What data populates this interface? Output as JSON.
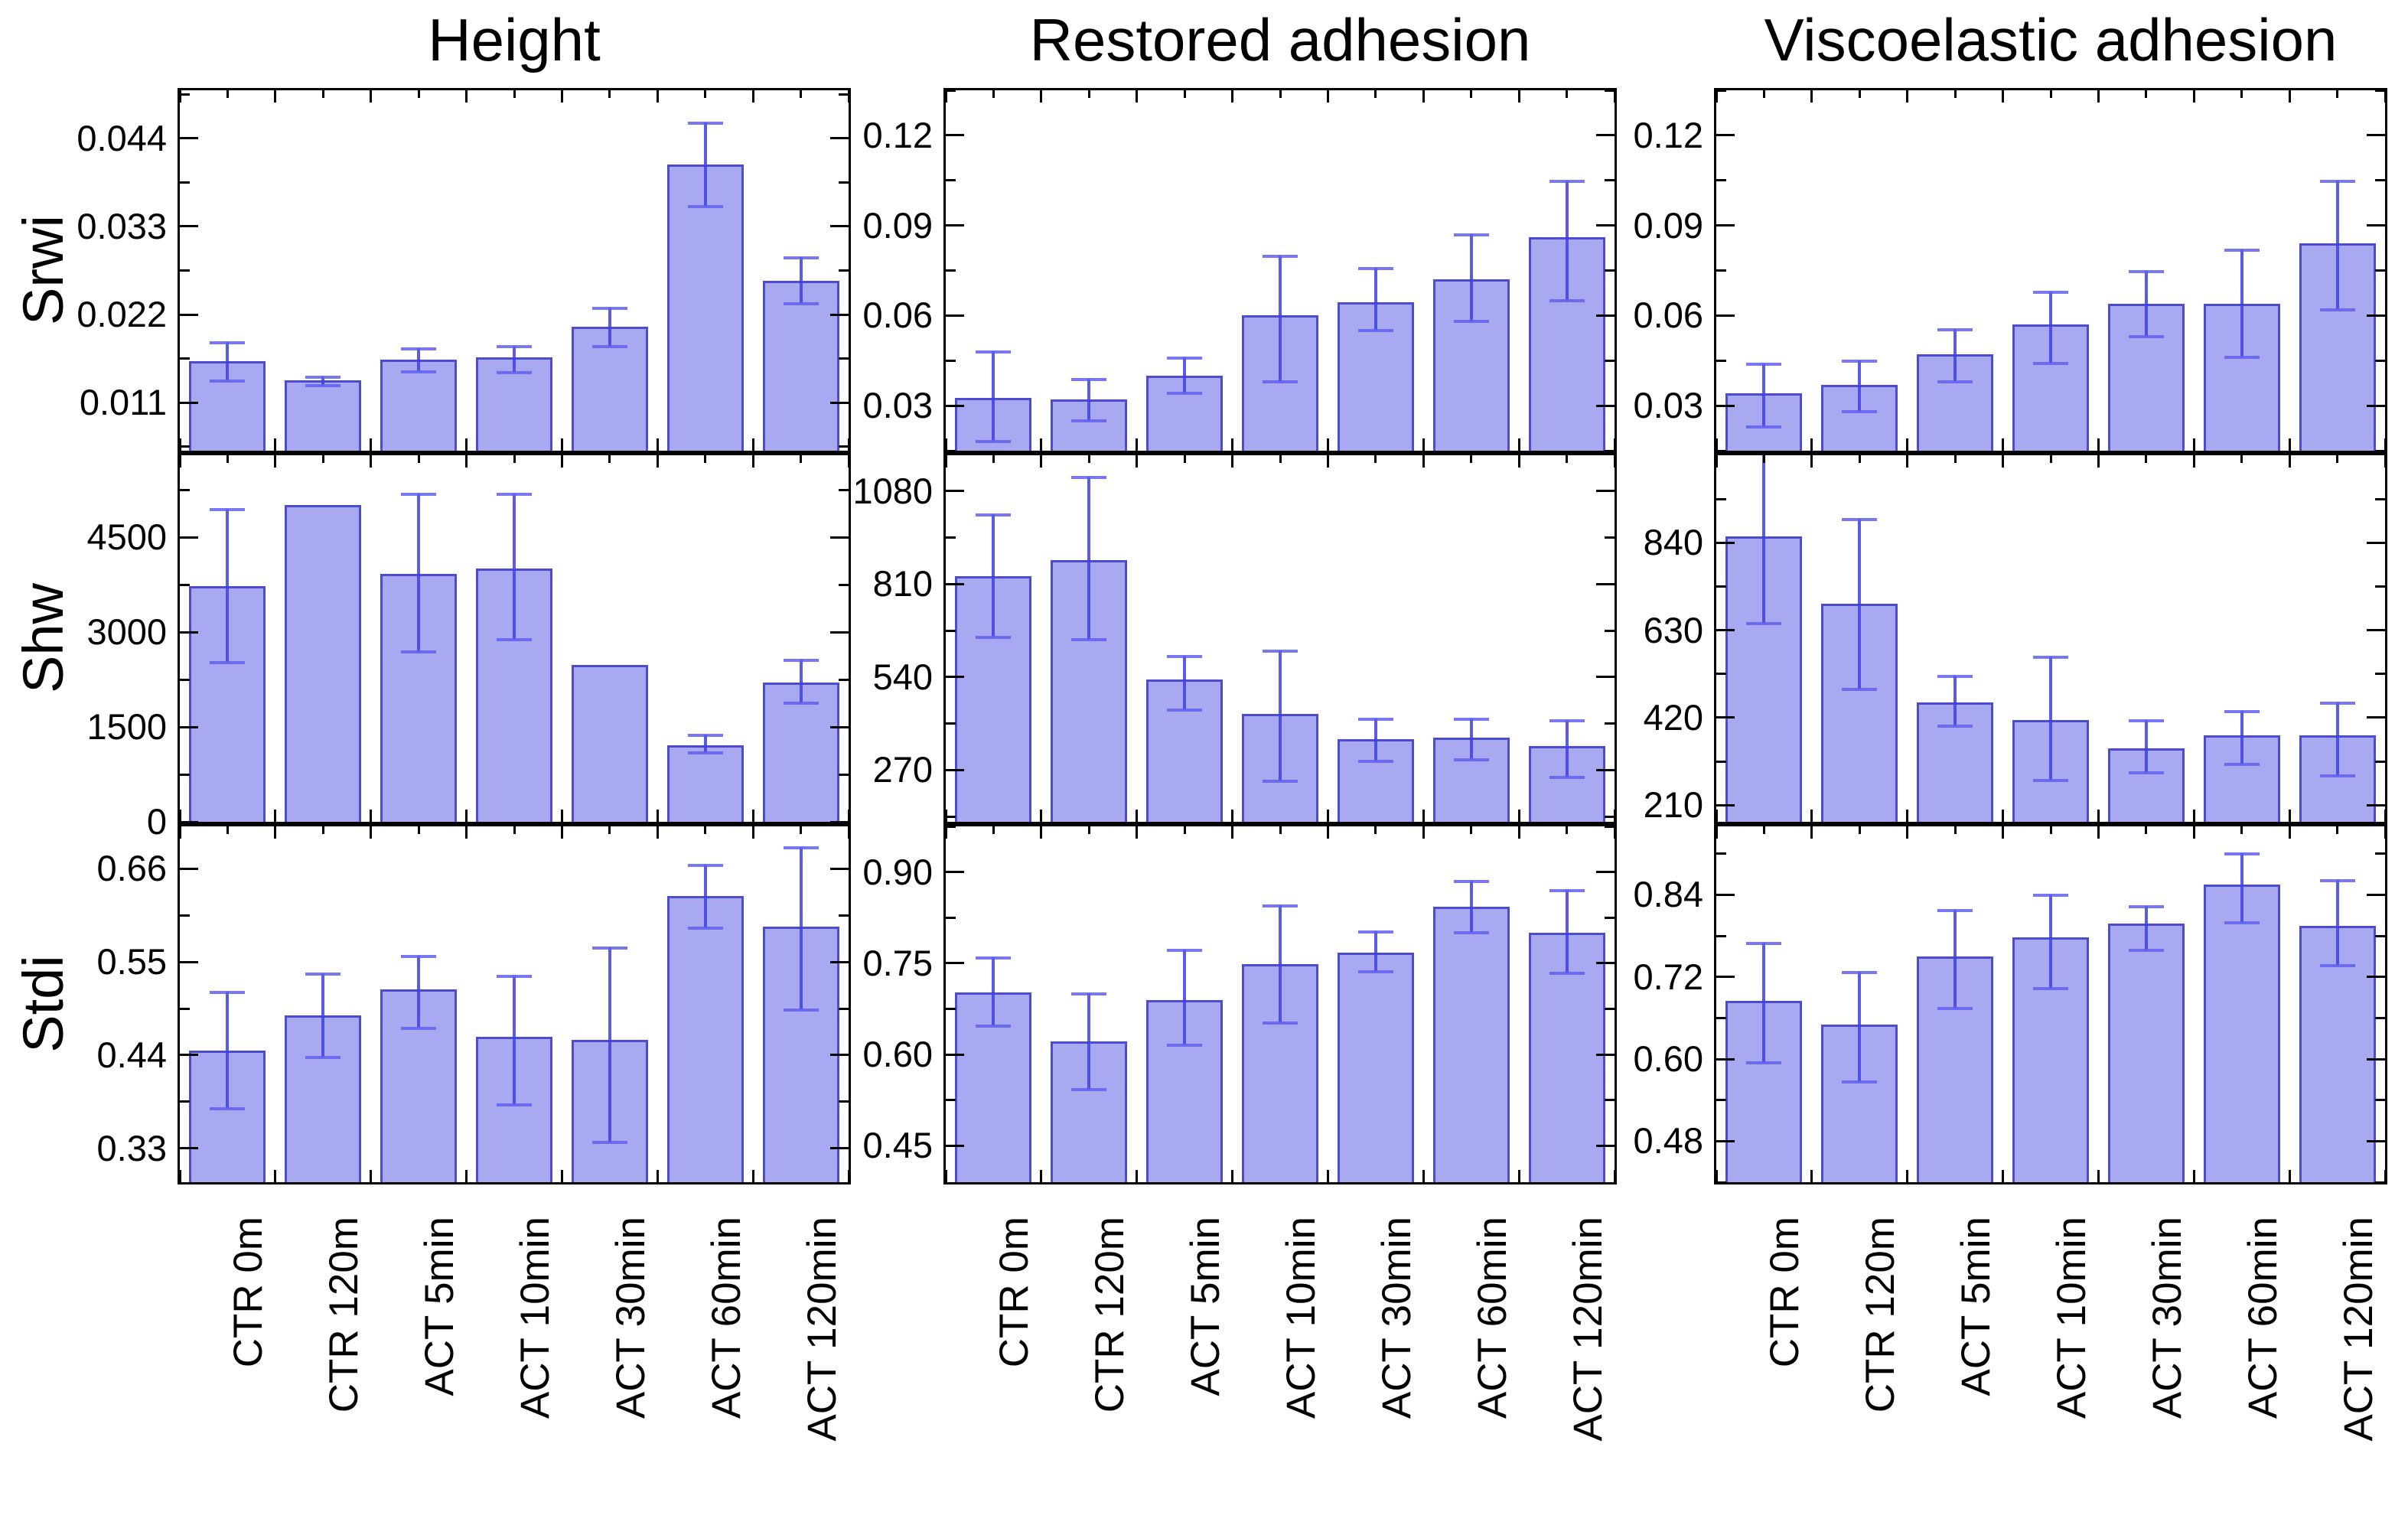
{
  "figure": {
    "col_titles": [
      "Height",
      "Restored adhesion",
      "Viscoelastic adhesion"
    ],
    "row_labels": [
      "Srwi",
      "Shw",
      "Stdi"
    ],
    "categories": [
      "CTR 0m",
      "CTR 120m",
      "ACT 5min",
      "ACT 10min",
      "ACT 30min",
      "ACT 60min",
      "ACT 120min"
    ],
    "colors": {
      "bar_fill": "#a9a9f1",
      "bar_border": "#4c4cd0",
      "error_bar": "#3e3ee6",
      "axis": "#000000",
      "background": "#ffffff"
    }
  },
  "chart_data": [
    {
      "id": "srwi-height",
      "type": "bar",
      "row": "Srwi",
      "col": "Height",
      "categories": [
        "CTR 0m",
        "CTR 120m",
        "ACT 5min",
        "ACT 10min",
        "ACT 30min",
        "ACT 60min",
        "ACT 120min"
      ],
      "values": [
        0.0162,
        0.0138,
        0.0164,
        0.0167,
        0.0205,
        0.0407,
        0.0262
      ],
      "err_low": [
        0.0137,
        0.0131,
        0.0148,
        0.0147,
        0.018,
        0.0355,
        0.0233
      ],
      "err_high": [
        0.0186,
        0.0143,
        0.0178,
        0.0181,
        0.0229,
        0.046,
        0.0292
      ],
      "ytick_values": [
        0.011,
        0.022,
        0.033,
        0.044
      ],
      "ytick_labels": [
        "0.011",
        "0.022",
        "0.033",
        "0.044"
      ],
      "ylim": [
        0.005,
        0.05
      ],
      "grid": false,
      "legend": "none"
    },
    {
      "id": "srwi-restored",
      "type": "bar",
      "row": "Srwi",
      "col": "Restored adhesion",
      "categories": [
        "CTR 0m",
        "CTR 120m",
        "ACT 5min",
        "ACT 10min",
        "ACT 30min",
        "ACT 60min",
        "ACT 120min"
      ],
      "values": [
        0.0325,
        0.032,
        0.04,
        0.06,
        0.0645,
        0.072,
        0.086
      ],
      "err_low": [
        0.018,
        0.025,
        0.034,
        0.038,
        0.055,
        0.058,
        0.065
      ],
      "err_high": [
        0.048,
        0.039,
        0.046,
        0.08,
        0.076,
        0.087,
        0.105
      ],
      "ytick_values": [
        0.03,
        0.06,
        0.09,
        0.12
      ],
      "ytick_labels": [
        "0.03",
        "0.06",
        "0.09",
        "0.12"
      ],
      "ylim": [
        0.015,
        0.135
      ],
      "grid": false,
      "legend": "none"
    },
    {
      "id": "srwi-viscoelastic",
      "type": "bar",
      "row": "Srwi",
      "col": "Viscoelastic adhesion",
      "categories": [
        "CTR 0m",
        "CTR 120m",
        "ACT 5min",
        "ACT 10min",
        "ACT 30min",
        "ACT 60min",
        "ACT 120min"
      ],
      "values": [
        0.034,
        0.037,
        0.047,
        0.057,
        0.064,
        0.064,
        0.084
      ],
      "err_low": [
        0.023,
        0.028,
        0.038,
        0.044,
        0.053,
        0.046,
        0.062
      ],
      "err_high": [
        0.044,
        0.045,
        0.0555,
        0.068,
        0.075,
        0.082,
        0.105
      ],
      "ytick_values": [
        0.03,
        0.06,
        0.09,
        0.12
      ],
      "ytick_labels": [
        "0.03",
        "0.06",
        "0.09",
        "0.12"
      ],
      "ylim": [
        0.015,
        0.135
      ],
      "grid": false,
      "legend": "none"
    },
    {
      "id": "shw-height",
      "type": "bar",
      "row": "Shw",
      "col": "Height",
      "categories": [
        "CTR 0m",
        "CTR 120m",
        "ACT 5min",
        "ACT 10min",
        "ACT 30min",
        "ACT 60min",
        "ACT 120min"
      ],
      "values": [
        3730,
        5010,
        3926,
        4011,
        2487,
        1207,
        2206
      ],
      "err_low": [
        2520,
        null,
        2694,
        2878,
        null,
        1090,
        1876
      ],
      "err_high": [
        4950,
        null,
        5197,
        5197,
        null,
        1375,
        2572
      ],
      "ytick_values": [
        0,
        1500,
        3000,
        4500
      ],
      "ytick_labels": [
        "0",
        "1500",
        "3000",
        "4500"
      ],
      "ylim": [
        0,
        5800
      ],
      "grid": false,
      "legend": "none"
    },
    {
      "id": "shw-restored",
      "type": "bar",
      "row": "Shw",
      "col": "Restored adhesion",
      "categories": [
        "CTR 0m",
        "CTR 120m",
        "ACT 5min",
        "ACT 10min",
        "ACT 30min",
        "ACT 60min",
        "ACT 120min"
      ],
      "values": [
        832,
        879,
        533,
        434,
        361,
        365,
        339
      ],
      "err_low": [
        655,
        648,
        445,
        237,
        296,
        300,
        248
      ],
      "err_high": [
        1012,
        1122,
        603,
        617,
        420,
        420,
        415
      ],
      "ytick_values": [
        270,
        540,
        810,
        1080
      ],
      "ytick_labels": [
        "270",
        "540",
        "810",
        "1080"
      ],
      "ylim": [
        120,
        1184
      ],
      "grid": false,
      "legend": "none"
    },
    {
      "id": "shw-viscoelastic",
      "type": "bar",
      "row": "Shw",
      "col": "Viscoelastic adhesion",
      "categories": [
        "CTR 0m",
        "CTR 120m",
        "ACT 5min",
        "ACT 10min",
        "ACT 30min",
        "ACT 60min",
        "ACT 120min"
      ],
      "values": [
        855,
        694,
        457,
        414,
        347,
        378,
        378
      ],
      "err_low": [
        645,
        488,
        400,
        270,
        287,
        308,
        280
      ],
      "err_high": [
        1060,
        897,
        521,
        567,
        414,
        437,
        457
      ],
      "ytick_values": [
        210,
        420,
        630,
        840
      ],
      "ytick_labels": [
        "210",
        "420",
        "630",
        "840"
      ],
      "ylim": [
        170,
        1050
      ],
      "grid": false,
      "legend": "none"
    },
    {
      "id": "stdi-height",
      "type": "bar",
      "row": "Stdi",
      "col": "Height",
      "categories": [
        "CTR 0m",
        "CTR 120m",
        "ACT 5min",
        "ACT 10min",
        "ACT 30min",
        "ACT 60min",
        "ACT 120min"
      ],
      "values": [
        0.445,
        0.487,
        0.518,
        0.462,
        0.458,
        0.628,
        0.592
      ],
      "err_low": [
        0.377,
        0.437,
        0.472,
        0.381,
        0.337,
        0.59,
        0.493
      ],
      "err_high": [
        0.515,
        0.537,
        0.557,
        0.534,
        0.567,
        0.665,
        0.686
      ],
      "ytick_values": [
        0.33,
        0.44,
        0.55,
        0.66
      ],
      "ytick_labels": [
        "0.33",
        "0.44",
        "0.55",
        "0.66"
      ],
      "ylim": [
        0.29,
        0.71
      ],
      "grid": false,
      "legend": "none"
    },
    {
      "id": "stdi-restored",
      "type": "bar",
      "row": "Stdi",
      "col": "Restored adhesion",
      "categories": [
        "CTR 0m",
        "CTR 120m",
        "ACT 5min",
        "ACT 10min",
        "ACT 30min",
        "ACT 60min",
        "ACT 120min"
      ],
      "values": [
        0.702,
        0.621,
        0.69,
        0.748,
        0.768,
        0.843,
        0.8
      ],
      "err_low": [
        0.647,
        0.542,
        0.615,
        0.652,
        0.736,
        0.8,
        0.734
      ],
      "err_high": [
        0.76,
        0.701,
        0.772,
        0.845,
        0.803,
        0.886,
        0.87
      ],
      "ytick_values": [
        0.45,
        0.6,
        0.75,
        0.9
      ],
      "ytick_labels": [
        "0.45",
        "0.60",
        "0.75",
        "0.90"
      ],
      "ylim": [
        0.39,
        0.975
      ],
      "grid": false,
      "legend": "none"
    },
    {
      "id": "stdi-viscoelastic",
      "type": "bar",
      "row": "Stdi",
      "col": "Viscoelastic adhesion",
      "categories": [
        "CTR 0m",
        "CTR 120m",
        "ACT 5min",
        "ACT 10min",
        "ACT 30min",
        "ACT 60min",
        "ACT 120min"
      ],
      "values": [
        0.685,
        0.65,
        0.75,
        0.778,
        0.798,
        0.855,
        0.795
      ],
      "err_low": [
        0.595,
        0.566,
        0.674,
        0.703,
        0.759,
        0.799,
        0.737
      ],
      "err_high": [
        0.77,
        0.728,
        0.818,
        0.84,
        0.824,
        0.901,
        0.862
      ],
      "ytick_values": [
        0.48,
        0.6,
        0.72,
        0.84
      ],
      "ytick_labels": [
        "0.48",
        "0.60",
        "0.72",
        "0.84"
      ],
      "ylim": [
        0.42,
        0.94
      ],
      "grid": false,
      "legend": "none"
    }
  ]
}
